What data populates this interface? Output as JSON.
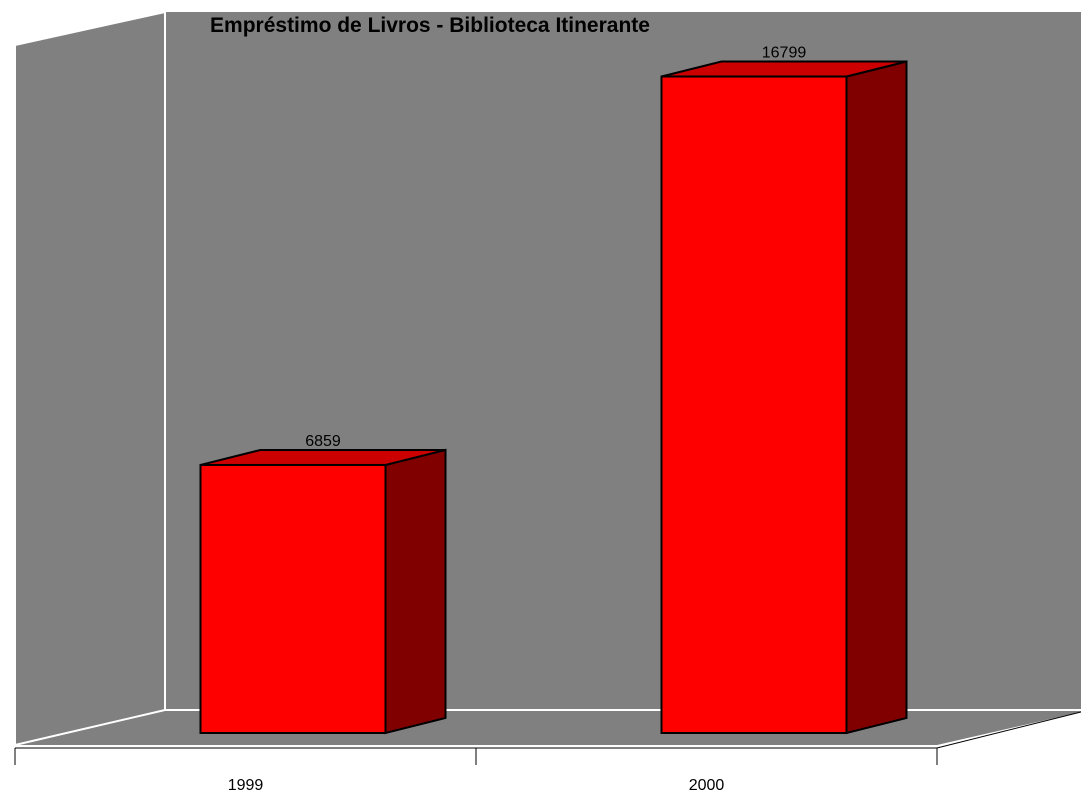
{
  "chart_data": {
    "type": "bar3d",
    "title": "Empréstimo de Livros - Biblioteca Itinerante",
    "categories": [
      "1999",
      "2000"
    ],
    "values": [
      6859,
      16799
    ],
    "color": "#ff0000",
    "ylim": [
      0,
      18000
    ]
  }
}
